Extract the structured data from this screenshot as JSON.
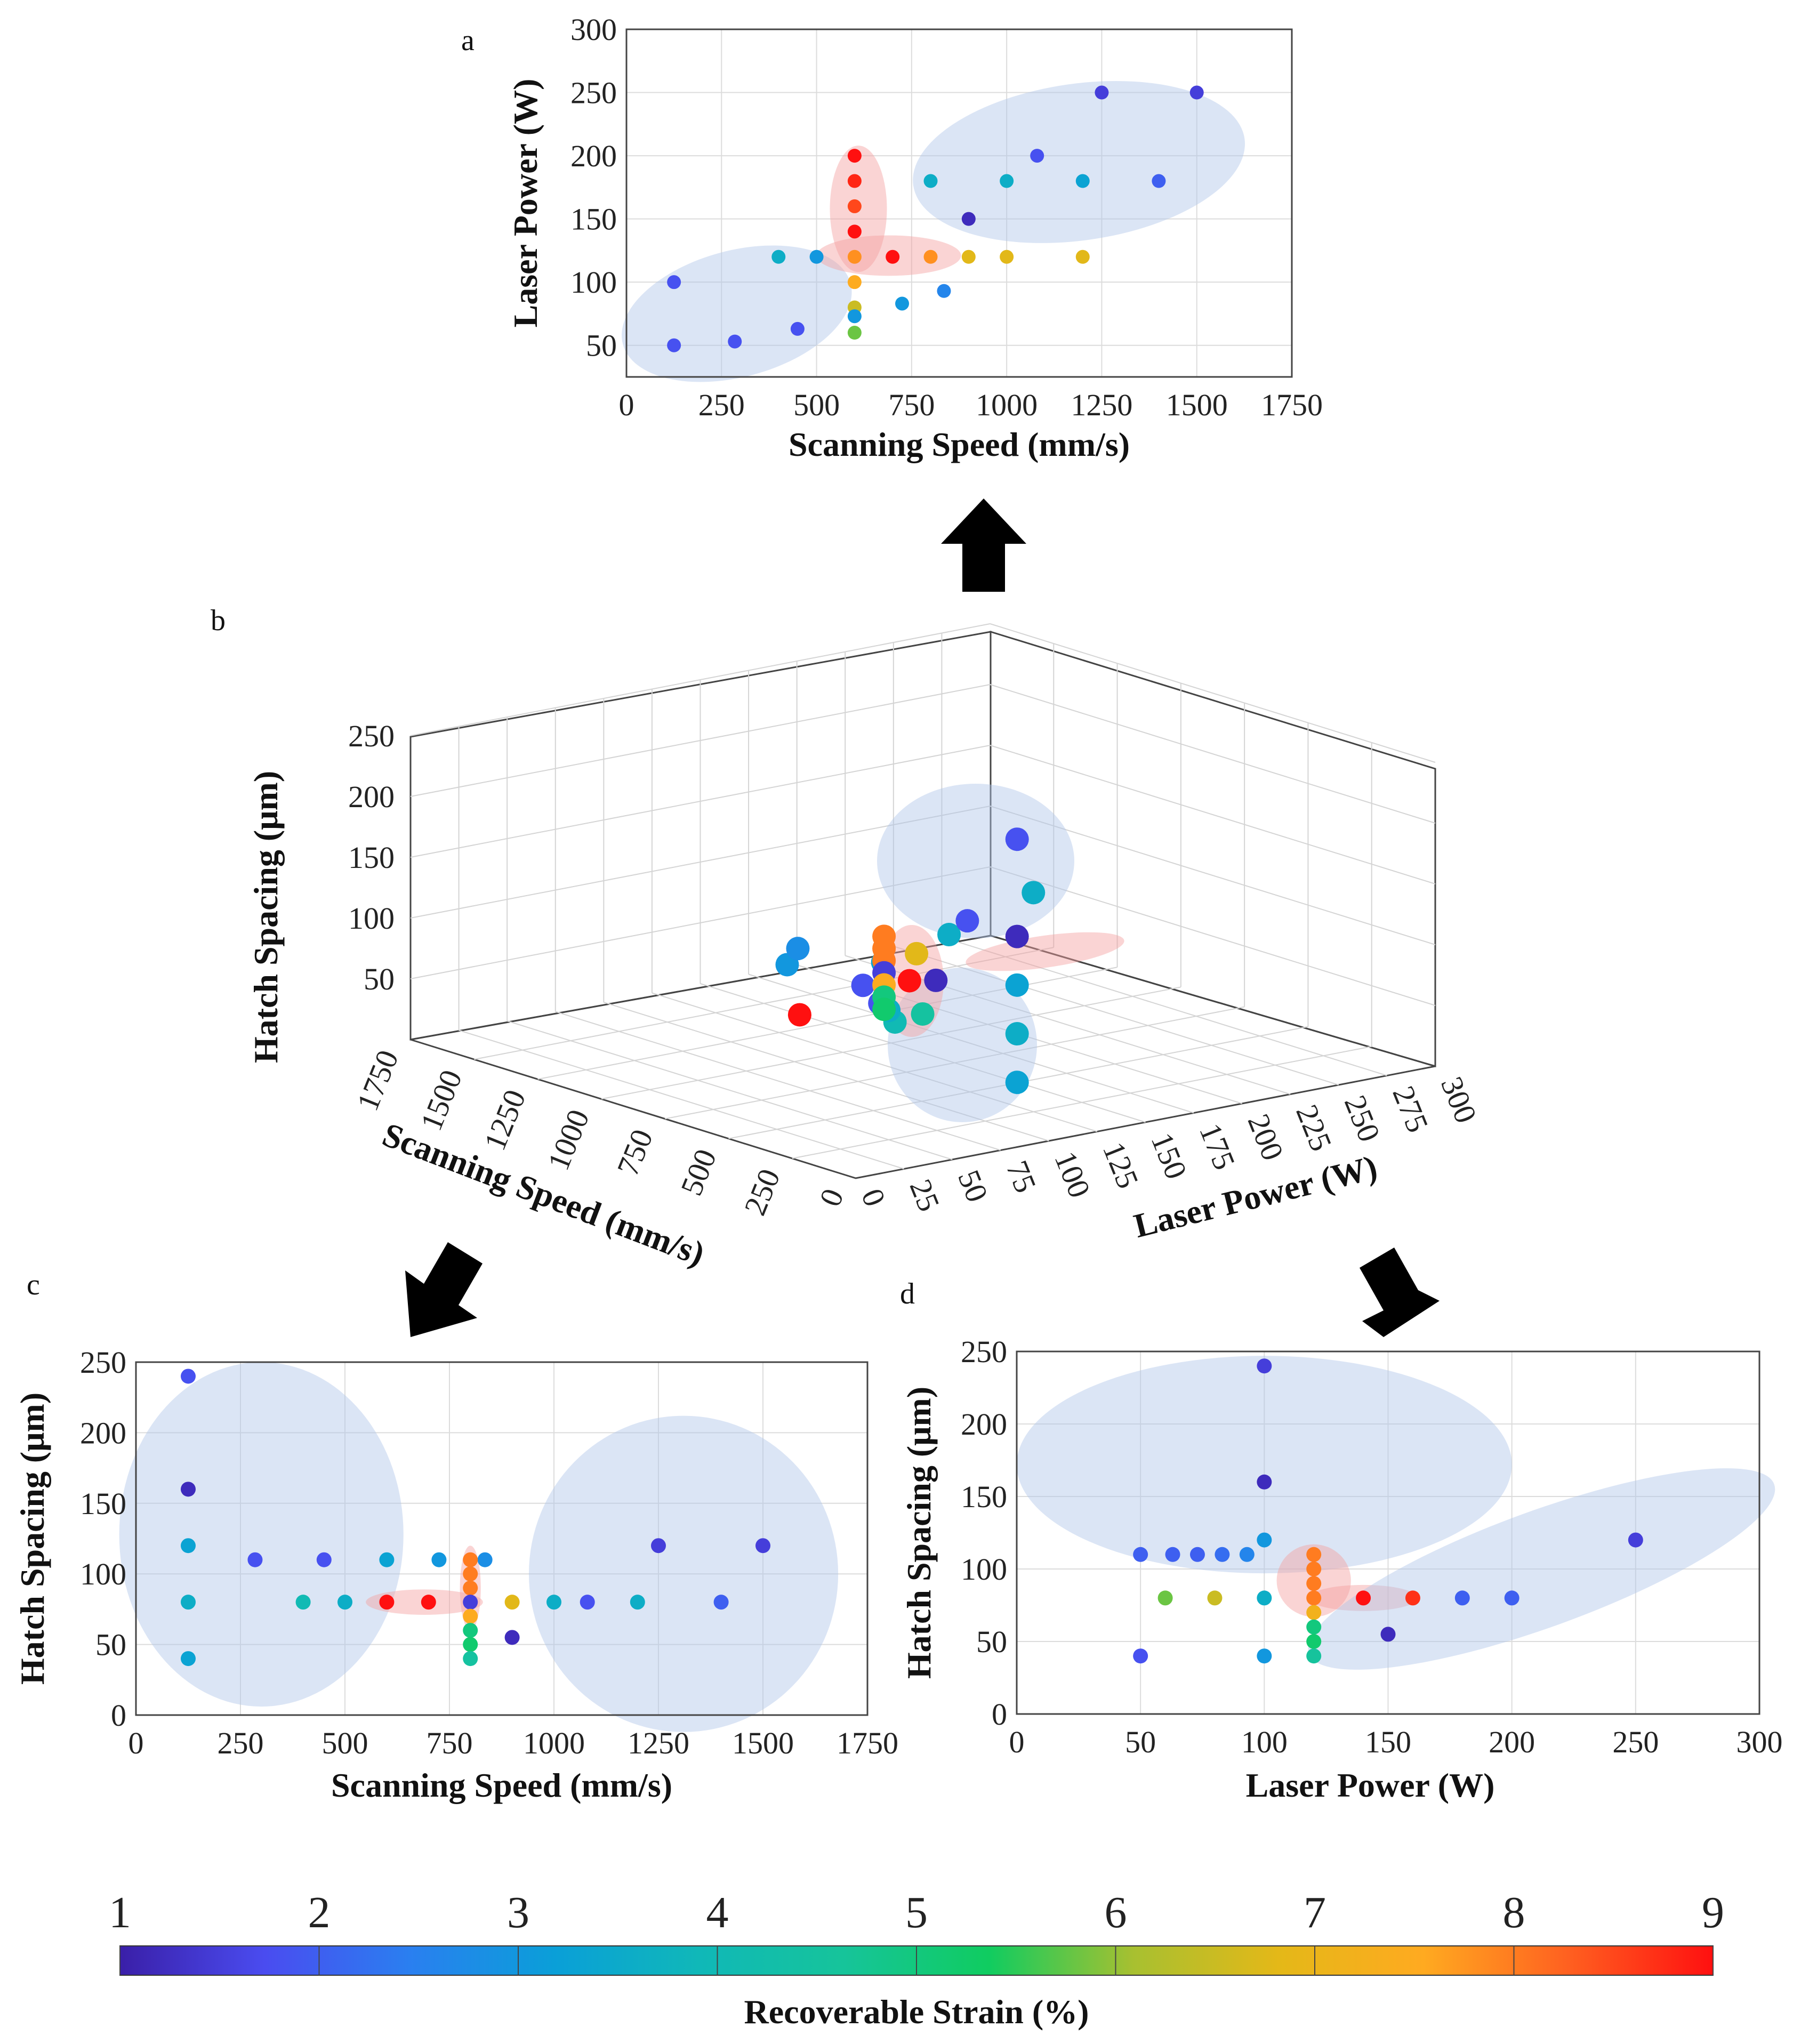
{
  "colormap": [
    "#3a1fa8",
    "#4a4cf0",
    "#2a7ff0",
    "#0a9fd8",
    "#10b8b8",
    "#16c49a",
    "#10cc60",
    "#a8c030",
    "#e4b818",
    "#ffaa20",
    "#ff6020",
    "#ff1010"
  ],
  "colorbar": {
    "ticks": [
      "1",
      "2",
      "3",
      "4",
      "5",
      "6",
      "7",
      "8",
      "9"
    ],
    "label": "Recoverable Strain (%)",
    "range": [
      1,
      9
    ]
  },
  "chart_data": [
    {
      "id": "a",
      "panel_label": "a",
      "type": "scatter",
      "xlabel": "Scanning Speed (mm/s)",
      "ylabel": "Laser Power (W)",
      "xlim": [
        0,
        1750
      ],
      "ylim": [
        25,
        300
      ],
      "xticks": [
        "0",
        "250",
        "500",
        "750",
        "1000",
        "1250",
        "1500",
        "1750"
      ],
      "yticks": [
        "50",
        "100",
        "150",
        "200",
        "250",
        "300"
      ],
      "grid": true,
      "points": [
        {
          "x": 125,
          "y": 100,
          "c": 1.8
        },
        {
          "x": 125,
          "y": 50,
          "c": 1.8
        },
        {
          "x": 285,
          "y": 53,
          "c": 1.8
        },
        {
          "x": 450,
          "y": 63,
          "c": 1.8
        },
        {
          "x": 400,
          "y": 120,
          "c": 3.6
        },
        {
          "x": 500,
          "y": 120,
          "c": 3.0
        },
        {
          "x": 600,
          "y": 200,
          "c": 9.0
        },
        {
          "x": 600,
          "y": 180,
          "c": 8.8
        },
        {
          "x": 600,
          "y": 160,
          "c": 8.5
        },
        {
          "x": 600,
          "y": 140,
          "c": 9.0
        },
        {
          "x": 600,
          "y": 120,
          "c": 7.8
        },
        {
          "x": 600,
          "y": 100,
          "c": 7.5
        },
        {
          "x": 600,
          "y": 80,
          "c": 6.5
        },
        {
          "x": 600,
          "y": 73,
          "c": 3.0
        },
        {
          "x": 600,
          "y": 60,
          "c": 5.8
        },
        {
          "x": 700,
          "y": 120,
          "c": 9.0
        },
        {
          "x": 800,
          "y": 120,
          "c": 7.8
        },
        {
          "x": 725,
          "y": 83,
          "c": 3.0
        },
        {
          "x": 835,
          "y": 93,
          "c": 2.6
        },
        {
          "x": 800,
          "y": 180,
          "c": 3.6
        },
        {
          "x": 900,
          "y": 150,
          "c": 1.2
        },
        {
          "x": 900,
          "y": 120,
          "c": 6.8
        },
        {
          "x": 1000,
          "y": 120,
          "c": 6.8
        },
        {
          "x": 1200,
          "y": 120,
          "c": 6.8
        },
        {
          "x": 1000,
          "y": 180,
          "c": 3.6
        },
        {
          "x": 1080,
          "y": 200,
          "c": 1.8
        },
        {
          "x": 1200,
          "y": 180,
          "c": 3.3
        },
        {
          "x": 1250,
          "y": 250,
          "c": 1.5
        },
        {
          "x": 1400,
          "y": 180,
          "c": 2.0
        },
        {
          "x": 1500,
          "y": 250,
          "c": 1.5
        }
      ],
      "highlights": [
        {
          "color": "blue",
          "cx": 290,
          "cy": 75,
          "rx": 310,
          "ry": 50,
          "rot": -15
        },
        {
          "color": "red",
          "cx": 610,
          "cy": 158,
          "rx": 75,
          "ry": 50,
          "rot": 0
        },
        {
          "color": "red",
          "cx": 690,
          "cy": 121,
          "rx": 190,
          "ry": 16,
          "rot": 0
        },
        {
          "color": "blue",
          "cx": 1190,
          "cy": 195,
          "rx": 440,
          "ry": 62,
          "rot": -8
        }
      ]
    },
    {
      "id": "b",
      "panel_label": "b",
      "type": "scatter",
      "xlabel": "Scanning Speed (mm/s)",
      "ylabel": "Hatch Spacing (μm)",
      "zlabel": "Laser Power (W)",
      "hs_ticks": [
        "50",
        "100",
        "150",
        "200",
        "250"
      ],
      "ss_ticks": [
        "1750",
        "1500",
        "1250",
        "1000",
        "750",
        "500",
        "250",
        "0"
      ],
      "lp_ticks": [
        "0",
        "25",
        "50",
        "75",
        "100",
        "125",
        "150",
        "175",
        "200",
        "225",
        "250",
        "275",
        "300"
      ],
      "grid": true
    },
    {
      "id": "c",
      "panel_label": "c",
      "type": "scatter",
      "xlabel": "Scanning Speed (mm/s)",
      "ylabel": "Hatch Spacing (μm)",
      "xlim": [
        0,
        1750
      ],
      "ylim": [
        0,
        250
      ],
      "xticks": [
        "0",
        "250",
        "500",
        "750",
        "1000",
        "1250",
        "1500",
        "1750"
      ],
      "yticks": [
        "0",
        "50",
        "100",
        "150",
        "200",
        "250"
      ],
      "grid": true,
      "points": [
        {
          "x": 125,
          "y": 240,
          "c": 1.8
        },
        {
          "x": 125,
          "y": 160,
          "c": 1.2
        },
        {
          "x": 125,
          "y": 120,
          "c": 3.3
        },
        {
          "x": 125,
          "y": 80,
          "c": 3.6
        },
        {
          "x": 125,
          "y": 40,
          "c": 3.3
        },
        {
          "x": 285,
          "y": 110,
          "c": 1.8
        },
        {
          "x": 450,
          "y": 110,
          "c": 1.8
        },
        {
          "x": 400,
          "y": 80,
          "c": 4.0
        },
        {
          "x": 500,
          "y": 80,
          "c": 3.6
        },
        {
          "x": 600,
          "y": 110,
          "c": 3.3
        },
        {
          "x": 725,
          "y": 110,
          "c": 3.0
        },
        {
          "x": 835,
          "y": 110,
          "c": 2.8
        },
        {
          "x": 600,
          "y": 80,
          "c": 9.0
        },
        {
          "x": 700,
          "y": 80,
          "c": 9.0
        },
        {
          "x": 800,
          "y": 110,
          "c": 8.0
        },
        {
          "x": 800,
          "y": 100,
          "c": 8.0
        },
        {
          "x": 800,
          "y": 90,
          "c": 8.0
        },
        {
          "x": 800,
          "y": 80,
          "c": 1.5
        },
        {
          "x": 800,
          "y": 70,
          "c": 7.5
        },
        {
          "x": 800,
          "y": 60,
          "c": 5.0
        },
        {
          "x": 800,
          "y": 50,
          "c": 5.2
        },
        {
          "x": 800,
          "y": 40,
          "c": 4.5
        },
        {
          "x": 900,
          "y": 55,
          "c": 1.2
        },
        {
          "x": 900,
          "y": 80,
          "c": 6.8
        },
        {
          "x": 1000,
          "y": 80,
          "c": 3.6
        },
        {
          "x": 1080,
          "y": 80,
          "c": 1.8
        },
        {
          "x": 1200,
          "y": 80,
          "c": 3.6
        },
        {
          "x": 1250,
          "y": 120,
          "c": 1.5
        },
        {
          "x": 1400,
          "y": 80,
          "c": 2.0
        },
        {
          "x": 1500,
          "y": 120,
          "c": 1.5
        }
      ],
      "highlights": [
        {
          "color": "blue",
          "cx": 300,
          "cy": 128,
          "rx": 340,
          "ry": 122,
          "rot": 0
        },
        {
          "color": "red",
          "cx": 690,
          "cy": 80,
          "rx": 140,
          "ry": 9,
          "rot": 0
        },
        {
          "color": "red",
          "cx": 800,
          "cy": 90,
          "rx": 25,
          "ry": 30,
          "rot": 0
        },
        {
          "color": "blue",
          "cx": 1310,
          "cy": 100,
          "rx": 370,
          "ry": 112,
          "rot": 0
        }
      ]
    },
    {
      "id": "d",
      "panel_label": "d",
      "type": "scatter",
      "xlabel": "Laser Power (W)",
      "ylabel": "Hatch Spacing (μm)",
      "xlim": [
        0,
        300
      ],
      "ylim": [
        0,
        250
      ],
      "xticks": [
        "0",
        "50",
        "100",
        "150",
        "200",
        "250",
        "300"
      ],
      "yticks": [
        "0",
        "50",
        "100",
        "150",
        "200",
        "250"
      ],
      "grid": true,
      "points": [
        {
          "x": 100,
          "y": 240,
          "c": 1.5
        },
        {
          "x": 100,
          "y": 160,
          "c": 1.2
        },
        {
          "x": 100,
          "y": 120,
          "c": 3.0
        },
        {
          "x": 100,
          "y": 80,
          "c": 3.6
        },
        {
          "x": 100,
          "y": 40,
          "c": 3.0
        },
        {
          "x": 50,
          "y": 110,
          "c": 2.0
        },
        {
          "x": 63,
          "y": 110,
          "c": 2.0
        },
        {
          "x": 73,
          "y": 110,
          "c": 2.0
        },
        {
          "x": 83,
          "y": 110,
          "c": 2.2
        },
        {
          "x": 93,
          "y": 110,
          "c": 2.6
        },
        {
          "x": 60,
          "y": 80,
          "c": 5.8
        },
        {
          "x": 80,
          "y": 80,
          "c": 6.5
        },
        {
          "x": 50,
          "y": 40,
          "c": 1.8
        },
        {
          "x": 120,
          "y": 110,
          "c": 8.0
        },
        {
          "x": 120,
          "y": 100,
          "c": 8.0
        },
        {
          "x": 120,
          "y": 90,
          "c": 8.0
        },
        {
          "x": 120,
          "y": 80,
          "c": 8.0
        },
        {
          "x": 120,
          "y": 70,
          "c": 7.2
        },
        {
          "x": 120,
          "y": 60,
          "c": 5.0
        },
        {
          "x": 120,
          "y": 50,
          "c": 5.2
        },
        {
          "x": 120,
          "y": 40,
          "c": 4.6
        },
        {
          "x": 140,
          "y": 80,
          "c": 9.0
        },
        {
          "x": 160,
          "y": 80,
          "c": 8.7
        },
        {
          "x": 150,
          "y": 55,
          "c": 1.2
        },
        {
          "x": 180,
          "y": 80,
          "c": 2.0
        },
        {
          "x": 200,
          "y": 80,
          "c": 2.0
        },
        {
          "x": 250,
          "y": 120,
          "c": 1.5
        }
      ],
      "highlights": [
        {
          "color": "blue",
          "cx": 100,
          "cy": 172,
          "rx": 100,
          "ry": 75,
          "rot": 0
        },
        {
          "color": "red",
          "cx": 120,
          "cy": 92,
          "rx": 15,
          "ry": 25,
          "rot": 0
        },
        {
          "color": "red",
          "cx": 140,
          "cy": 80,
          "rx": 22,
          "ry": 9,
          "rot": 0
        },
        {
          "color": "blue",
          "cx": 212,
          "cy": 100,
          "rx": 100,
          "ry": 40,
          "rot": -20
        }
      ]
    }
  ]
}
